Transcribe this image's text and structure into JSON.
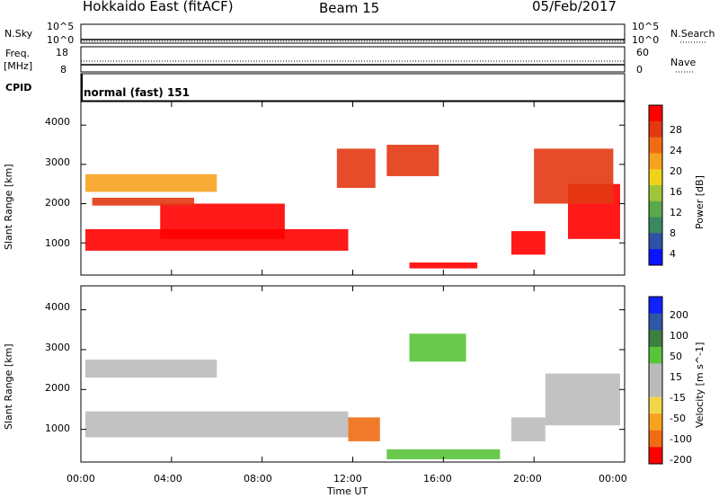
{
  "header": {
    "station": "Hokkaido East (fitACF)",
    "beam": "Beam 15",
    "date": "05/Feb/2017"
  },
  "left_labels": {
    "nsky": "N.Sky",
    "freq": "Freq.",
    "freq_unit": "[MHz]",
    "cpid": "CPID",
    "nsky_hi": "10^5",
    "nsky_lo": "10^0",
    "freq_hi": "18",
    "freq_lo": "8"
  },
  "right_labels": {
    "nsearch": "N.Search",
    "nave": "Nave",
    "nsearch_hi": "10^5",
    "nsearch_lo": "10^0",
    "nave_hi": "60",
    "nave_lo": "0"
  },
  "cpid_text": "normal (fast) 151",
  "colors": {
    "power_scale": [
      "#0a14ff",
      "#2f52a8",
      "#3a8a5f",
      "#5aa84c",
      "#9fc63a",
      "#f0d21a",
      "#f7a21e",
      "#f06b13",
      "#e33812",
      "#ff0000"
    ],
    "velocity_scale": [
      "#ff0000",
      "#f06b13",
      "#f7a21e",
      "#f2d64a",
      "#bbbbbb",
      "#bbbbbb",
      "#59c33a",
      "#3c7f41",
      "#2e57a6",
      "#1022ff"
    ]
  },
  "chart_data": [
    {
      "type": "heatmap",
      "title": "",
      "ylabel": "Slant Range [km]",
      "xlabel": "Time UT",
      "ylim": [
        180,
        4600
      ],
      "yticks": [
        "1000",
        "2000",
        "3000",
        "4000"
      ],
      "xticks": [
        "00:00",
        "04:00",
        "08:00",
        "12:00",
        "16:00",
        "20:00",
        "00:00"
      ],
      "colorbar_label": "Power [dB]",
      "colorbar_ticks": [
        "4",
        "8",
        "12",
        "16",
        "20",
        "24",
        "28"
      ],
      "regions": [
        {
          "t0": 0.2,
          "t1": 11.8,
          "r0": 800,
          "r1": 1350,
          "level": 28
        },
        {
          "t0": 3.5,
          "t1": 9.0,
          "r0": 1100,
          "r1": 2000,
          "level": 27
        },
        {
          "t0": 0.2,
          "t1": 6.0,
          "r0": 2300,
          "r1": 2750,
          "level": 20
        },
        {
          "t0": 0.5,
          "t1": 5.0,
          "r0": 1950,
          "r1": 2150,
          "level": 24
        },
        {
          "t0": 13.5,
          "t1": 15.8,
          "r0": 2700,
          "r1": 3500,
          "level": 25
        },
        {
          "t0": 11.3,
          "t1": 13.0,
          "r0": 2400,
          "r1": 3400,
          "level": 26
        },
        {
          "t0": 14.5,
          "t1": 17.5,
          "r0": 350,
          "r1": 500,
          "level": 28
        },
        {
          "t0": 19.0,
          "t1": 20.5,
          "r0": 700,
          "r1": 1300,
          "level": 28
        },
        {
          "t0": 21.5,
          "t1": 23.8,
          "r0": 1100,
          "r1": 2500,
          "level": 28
        },
        {
          "t0": 20.0,
          "t1": 23.5,
          "r0": 2000,
          "r1": 3400,
          "level": 24
        }
      ]
    },
    {
      "type": "heatmap",
      "title": "",
      "ylabel": "Slant Range [km]",
      "xlabel": "Time UT",
      "ylim": [
        180,
        4600
      ],
      "yticks": [
        "1000",
        "2000",
        "3000",
        "4000"
      ],
      "xticks": [
        "00:00",
        "04:00",
        "08:00",
        "12:00",
        "16:00",
        "20:00",
        "00:00"
      ],
      "colorbar_label": "Velocity [m s^-1]",
      "colorbar_ticks": [
        "200",
        "100",
        "50",
        "15",
        "-15",
        "-50",
        "-100",
        "-200"
      ],
      "regions": [
        {
          "t0": 0.2,
          "t1": 11.8,
          "r0": 800,
          "r1": 1450,
          "level": 0
        },
        {
          "t0": 0.2,
          "t1": 6.0,
          "r0": 2300,
          "r1": 2750,
          "level": 0
        },
        {
          "t0": 11.8,
          "t1": 13.2,
          "r0": 700,
          "r1": 1300,
          "level": -120
        },
        {
          "t0": 13.5,
          "t1": 18.5,
          "r0": 250,
          "r1": 500,
          "level": 40
        },
        {
          "t0": 19.0,
          "t1": 20.5,
          "r0": 700,
          "r1": 1300,
          "level": 0
        },
        {
          "t0": 20.5,
          "t1": 23.8,
          "r0": 1100,
          "r1": 2400,
          "level": 0
        },
        {
          "t0": 14.5,
          "t1": 17.0,
          "r0": 2700,
          "r1": 3400,
          "level": 40
        }
      ]
    }
  ]
}
